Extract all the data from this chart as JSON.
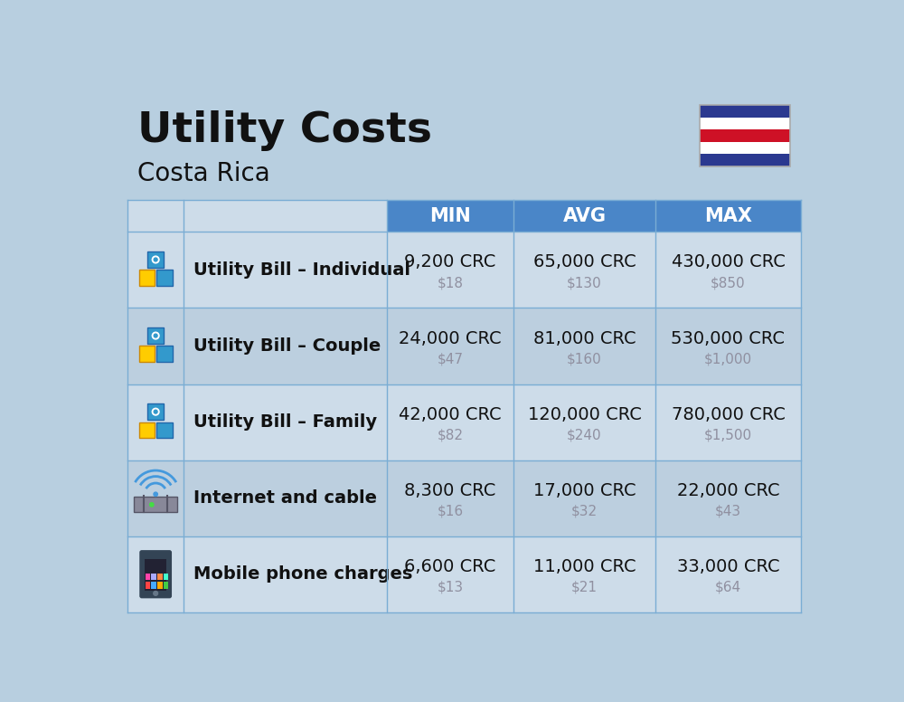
{
  "title": "Utility Costs",
  "subtitle": "Costa Rica",
  "background_color": "#b8cfe0",
  "header_bg_color": "#4a86c8",
  "header_text_color": "#ffffff",
  "row_bg_color_1": "#cddce9",
  "row_bg_color_2": "#bccfdf",
  "divider_color": "#7aadd4",
  "col_headers": [
    "",
    "",
    "MIN",
    "AVG",
    "MAX"
  ],
  "rows": [
    {
      "label": "Utility Bill – Individual",
      "min_crc": "9,200 CRC",
      "min_usd": "$18",
      "avg_crc": "65,000 CRC",
      "avg_usd": "$130",
      "max_crc": "430,000 CRC",
      "max_usd": "$850"
    },
    {
      "label": "Utility Bill – Couple",
      "min_crc": "24,000 CRC",
      "min_usd": "$47",
      "avg_crc": "81,000 CRC",
      "avg_usd": "$160",
      "max_crc": "530,000 CRC",
      "max_usd": "$1,000"
    },
    {
      "label": "Utility Bill – Family",
      "min_crc": "42,000 CRC",
      "min_usd": "$82",
      "avg_crc": "120,000 CRC",
      "avg_usd": "$240",
      "max_crc": "780,000 CRC",
      "max_usd": "$1,500"
    },
    {
      "label": "Internet and cable",
      "min_crc": "8,300 CRC",
      "min_usd": "$16",
      "avg_crc": "17,000 CRC",
      "avg_usd": "$32",
      "max_crc": "22,000 CRC",
      "max_usd": "$43"
    },
    {
      "label": "Mobile phone charges",
      "min_crc": "6,600 CRC",
      "min_usd": "$13",
      "avg_crc": "11,000 CRC",
      "avg_usd": "$21",
      "max_crc": "33,000 CRC",
      "max_usd": "$64"
    }
  ],
  "title_fontsize": 34,
  "subtitle_fontsize": 20,
  "header_fontsize": 15,
  "label_fontsize": 14,
  "crc_fontsize": 14,
  "usd_fontsize": 11,
  "flag_colors": [
    "#2b3990",
    "#ffffff",
    "#ce1126",
    "#ffffff",
    "#2b3990"
  ],
  "text_dark": "#111111",
  "text_gray": "#9090a0"
}
